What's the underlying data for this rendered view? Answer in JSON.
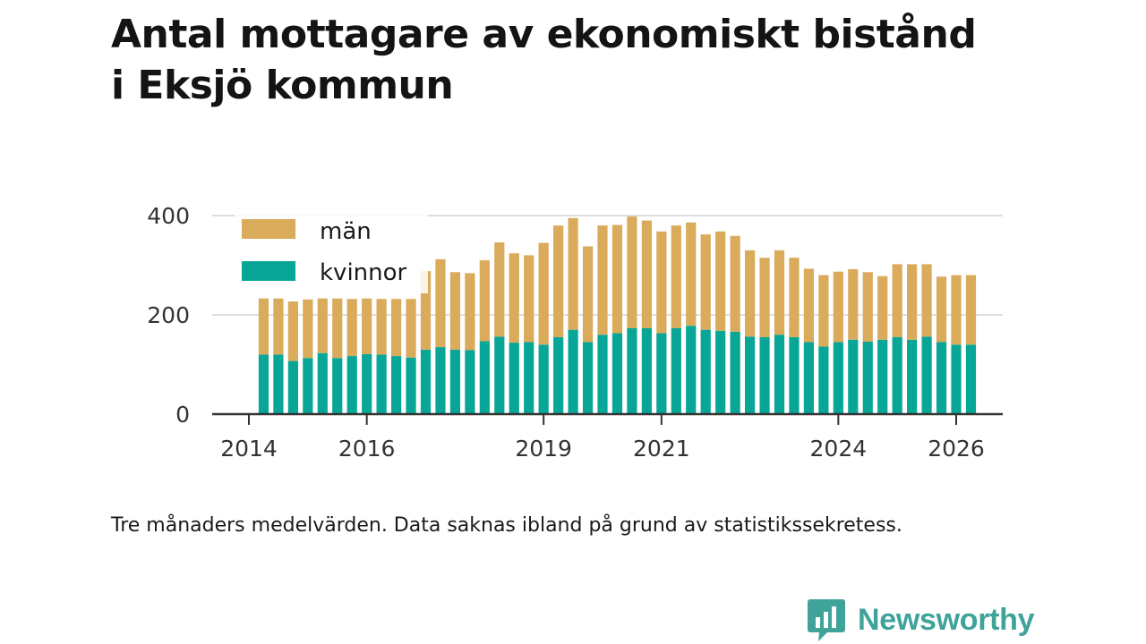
{
  "title_lines": [
    "Antal mottagare av ekonomiskt bistånd",
    "i Eksjö kommun"
  ],
  "footnote": "Tre månaders medelvärden. Data saknas ibland på grund av statistikssekretess.",
  "brand": {
    "name": "Newsworthy",
    "icon": "newsworthy-logo-icon"
  },
  "colors": {
    "man": "#d9ab5b",
    "kvinnor": "#07a697",
    "grid": "#dddddd",
    "axis": "#333333",
    "brand": "#3fa39a"
  },
  "chart_data": {
    "type": "bar",
    "stacked": true,
    "title": "Antal mottagare av ekonomiskt bistånd i Eksjö kommun",
    "ylim": [
      0,
      400
    ],
    "yticks": [
      0,
      200,
      400
    ],
    "xlim": [
      2014,
      2026.6
    ],
    "xticks": [
      2014,
      2016,
      2019,
      2021,
      2024,
      2026
    ],
    "grid": true,
    "legend_position": "top-left",
    "x": [
      2014.25,
      2014.5,
      2014.75,
      2015.0,
      2015.25,
      2015.5,
      2015.75,
      2016.0,
      2016.25,
      2016.5,
      2016.75,
      2017.0,
      2017.25,
      2017.5,
      2017.75,
      2018.0,
      2018.25,
      2018.5,
      2018.75,
      2019.0,
      2019.25,
      2019.5,
      2019.75,
      2020.0,
      2020.25,
      2020.5,
      2020.75,
      2021.0,
      2021.25,
      2021.5,
      2021.75,
      2022.0,
      2022.25,
      2022.5,
      2022.75,
      2023.0,
      2023.25,
      2023.5,
      2023.75,
      2024.0,
      2024.25,
      2024.5,
      2024.75,
      2025.0,
      2025.25,
      2025.5,
      2025.75,
      2026.0,
      2026.25
    ],
    "series": [
      {
        "name": "kvinnor",
        "values": [
          120,
          120,
          107,
          113,
          123,
          113,
          117,
          121,
          120,
          117,
          114,
          130,
          135,
          130,
          129,
          147,
          156,
          144,
          145,
          140,
          155,
          170,
          145,
          160,
          163,
          173,
          173,
          163,
          173,
          178,
          170,
          168,
          166,
          156,
          155,
          160,
          155,
          145,
          136,
          145,
          150,
          146,
          150,
          155,
          150,
          156,
          145,
          140,
          140
        ]
      },
      {
        "name": "män",
        "values": [
          113,
          113,
          120,
          118,
          110,
          120,
          115,
          112,
          112,
          115,
          118,
          158,
          177,
          156,
          155,
          163,
          190,
          180,
          175,
          205,
          225,
          225,
          193,
          220,
          218,
          225,
          217,
          205,
          207,
          208,
          192,
          200,
          193,
          174,
          160,
          170,
          160,
          148,
          144,
          142,
          142,
          140,
          128,
          147,
          152,
          146,
          132,
          140,
          140
        ]
      }
    ],
    "legend": [
      {
        "key": "män",
        "label": "män"
      },
      {
        "key": "kvinnor",
        "label": "kvinnor"
      }
    ]
  }
}
